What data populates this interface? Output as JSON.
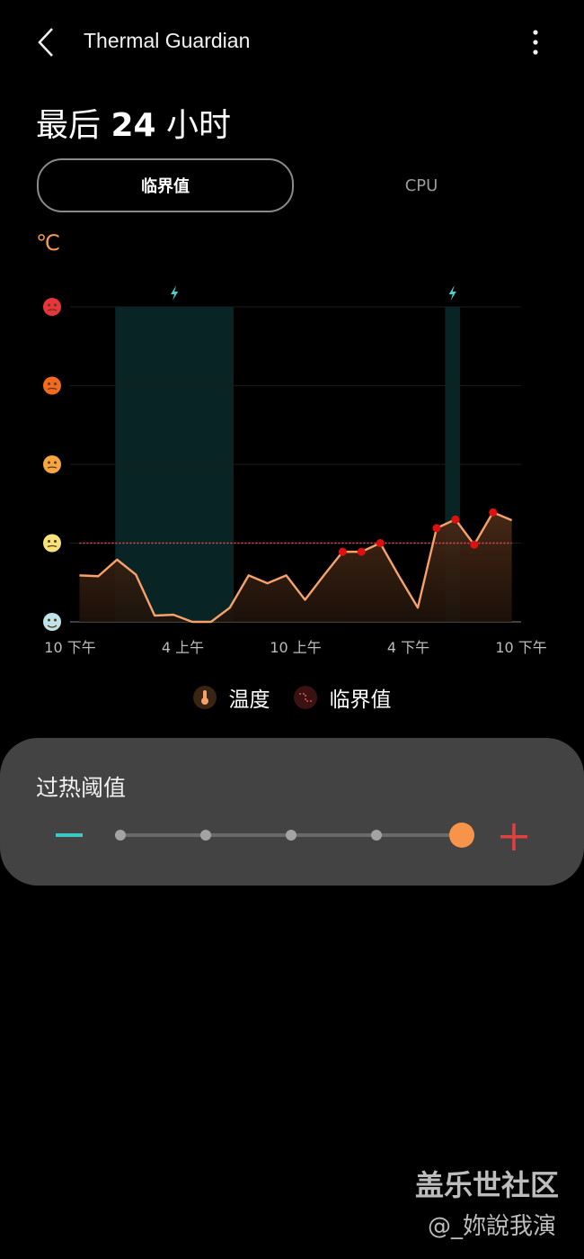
{
  "app": {
    "title": "Thermal Guardian"
  },
  "header": {
    "heading_prefix": "最后 ",
    "heading_bold": "24",
    "heading_suffix": " 小时"
  },
  "tabs": [
    {
      "label": "临界值",
      "selected": true
    },
    {
      "label": "CPU",
      "selected": false
    }
  ],
  "chart_data": {
    "type": "area",
    "ylabel": "℃",
    "y_levels": [
      "freezing-face",
      "neutral-face",
      "tired-face",
      "hot-face",
      "overheated-face"
    ],
    "ylim": [
      0,
      4
    ],
    "x_ticks": [
      {
        "hour": 0,
        "label": "10 下午"
      },
      {
        "hour": 6,
        "label": "4 上午"
      },
      {
        "hour": 12,
        "label": "10 上午"
      },
      {
        "hour": 18,
        "label": "4 下午"
      },
      {
        "hour": 24,
        "label": "10 下午"
      }
    ],
    "series": [
      {
        "name": "温度",
        "x": [
          0.5,
          1.5,
          2.5,
          3.5,
          4.5,
          5.5,
          6.5,
          7.5,
          8.5,
          9.5,
          10.5,
          11.5,
          12.5,
          13.5,
          14.5,
          15.5,
          16.5,
          17.5,
          18.5,
          19.5,
          20.5,
          21.5,
          22.5,
          23.5
        ],
        "values": [
          0.59,
          0.58,
          0.79,
          0.6,
          0.08,
          0.09,
          0.0,
          0.0,
          0.18,
          0.59,
          0.49,
          0.59,
          0.28,
          0.59,
          0.89,
          0.89,
          1.0,
          0.58,
          0.18,
          1.19,
          1.3,
          0.98,
          1.39,
          1.29
        ]
      }
    ],
    "threshold": {
      "name": "临界值",
      "value": 1.0
    },
    "highlighted_points": [
      14,
      15,
      16,
      19,
      20,
      21,
      22
    ],
    "charging_periods": [
      [
        2.4,
        8.7
      ],
      [
        19.95,
        20.75
      ]
    ],
    "grid": true,
    "legend": "bottom",
    "colors": {
      "line": "#f6a26a",
      "fill": "#4a2a17",
      "threshold": "#e05252",
      "highlight": "#e01010",
      "charging": "#0a2a2c",
      "bolt": "#3fd6cf"
    }
  },
  "legend": [
    {
      "label": "温度",
      "icon": "thermometer-icon"
    },
    {
      "label": "临界值",
      "icon": "threshold-icon"
    }
  ],
  "threshold_panel": {
    "title": "过热阈值",
    "levels": 5,
    "selected_level": 5
  },
  "watermark": {
    "line1": "盖乐世社区",
    "line2": "@_妳說我演"
  }
}
